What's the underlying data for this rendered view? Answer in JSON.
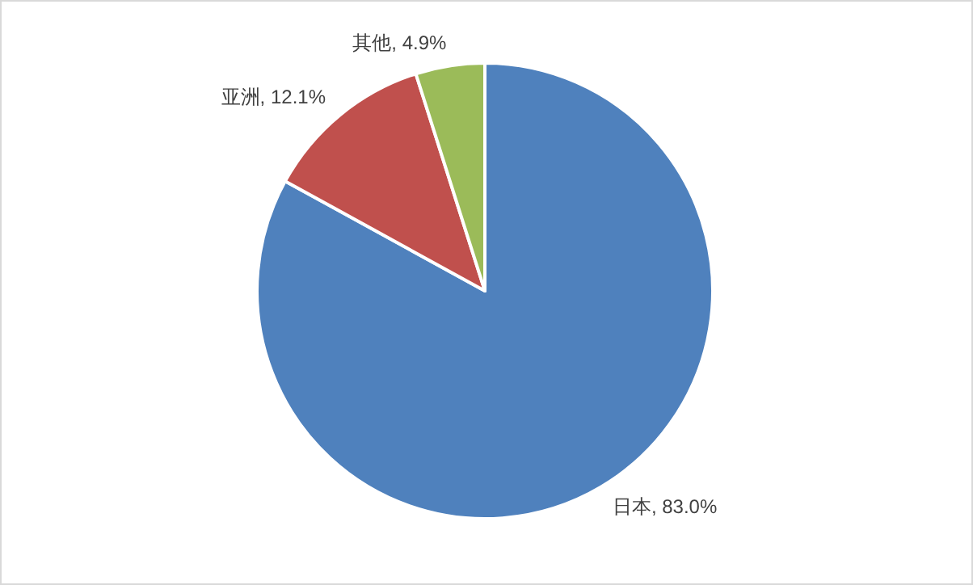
{
  "chart_data": {
    "type": "pie",
    "categories": [
      "日本",
      "亚洲",
      "其他"
    ],
    "values": [
      83.0,
      12.1,
      4.9
    ],
    "value_labels": [
      ", 83.0%",
      ", 12.1%",
      ", 4.9%"
    ],
    "colors": [
      "#4f81bd",
      "#c0504d",
      "#9bbb59"
    ],
    "legend": false
  }
}
